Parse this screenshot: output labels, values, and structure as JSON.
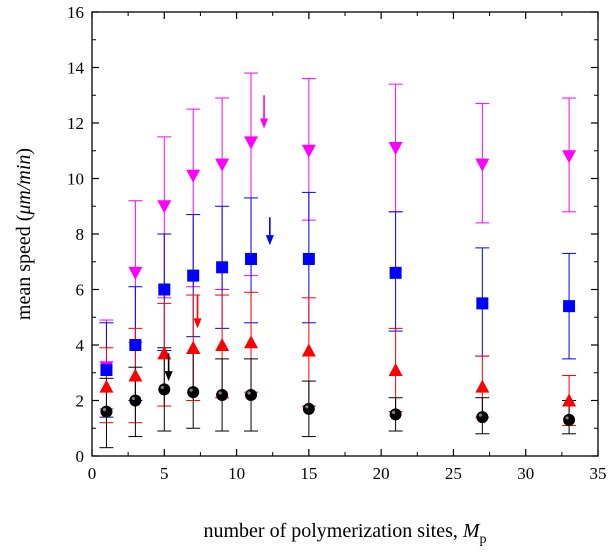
{
  "chart_data": {
    "type": "scatter",
    "title": "",
    "xlabel_main": "number of polymerization sites, ",
    "xlabel_var": "M",
    "xlabel_sub": "p",
    "ylabel_main": "mean speed (",
    "ylabel_unit": "μm/min",
    "ylabel_close": ")",
    "xlim": [
      0,
      35
    ],
    "ylim": [
      0,
      16
    ],
    "xticks": [
      0,
      5,
      10,
      15,
      20,
      25,
      30,
      35
    ],
    "yticks": [
      0,
      2,
      4,
      6,
      8,
      10,
      12,
      14,
      16
    ],
    "grid": false,
    "legend": "none",
    "x": [
      1,
      3,
      5,
      7,
      9,
      11,
      15,
      21,
      27,
      33
    ],
    "series": [
      {
        "marker": "triangle-down",
        "color": "#ff00ff",
        "values": [
          3.2,
          6.6,
          9.0,
          10.1,
          10.5,
          11.3,
          11.0,
          11.1,
          10.5,
          10.8
        ],
        "err_low": [
          1.7,
          4.1,
          5.7,
          6.1,
          6.0,
          6.5,
          8.5,
          8.8,
          8.4,
          8.8
        ],
        "err_high": [
          4.9,
          9.2,
          11.5,
          12.5,
          12.9,
          13.8,
          13.6,
          13.4,
          12.7,
          12.9
        ]
      },
      {
        "marker": "square",
        "color": "#0000ff",
        "values": [
          3.1,
          4.0,
          6.0,
          6.5,
          6.8,
          7.1,
          7.1,
          6.6,
          5.5,
          5.4
        ],
        "err_low": [
          1.4,
          2.0,
          3.8,
          4.3,
          4.6,
          4.8,
          4.8,
          4.5,
          3.6,
          3.5
        ],
        "err_high": [
          4.8,
          6.1,
          8.0,
          8.7,
          9.0,
          9.3,
          9.5,
          8.8,
          7.5,
          7.3
        ]
      },
      {
        "marker": "triangle-up",
        "color": "#ff0000",
        "values": [
          2.5,
          2.9,
          3.7,
          3.9,
          4.0,
          4.1,
          3.8,
          3.1,
          2.5,
          2.0
        ],
        "err_low": [
          1.2,
          1.2,
          1.8,
          2.0,
          2.1,
          2.3,
          1.8,
          1.6,
          1.4,
          1.1
        ],
        "err_high": [
          3.9,
          4.6,
          5.5,
          5.8,
          5.8,
          5.9,
          5.7,
          4.6,
          3.6,
          2.9
        ]
      },
      {
        "marker": "circle",
        "color": "#000000",
        "values": [
          1.6,
          2.0,
          2.4,
          2.3,
          2.2,
          2.2,
          1.7,
          1.5,
          1.4,
          1.3
        ],
        "err_low": [
          0.3,
          0.7,
          0.9,
          1.0,
          0.9,
          0.9,
          0.7,
          0.9,
          0.8,
          0.8
        ],
        "err_high": [
          2.8,
          3.2,
          3.9,
          3.7,
          3.5,
          3.5,
          2.7,
          2.1,
          2.1,
          2.0
        ]
      }
    ],
    "arrows": [
      {
        "x": 5.3,
        "y_from": 3.7,
        "y_to": 2.7,
        "color": "#000000"
      },
      {
        "x": 7.3,
        "y_from": 5.8,
        "y_to": 4.6,
        "color": "#ff0000"
      },
      {
        "x": 12.3,
        "y_from": 8.6,
        "y_to": 7.6,
        "color": "#0000ff"
      },
      {
        "x": 11.9,
        "y_from": 13.0,
        "y_to": 11.8,
        "color": "#ff00ff"
      }
    ]
  }
}
